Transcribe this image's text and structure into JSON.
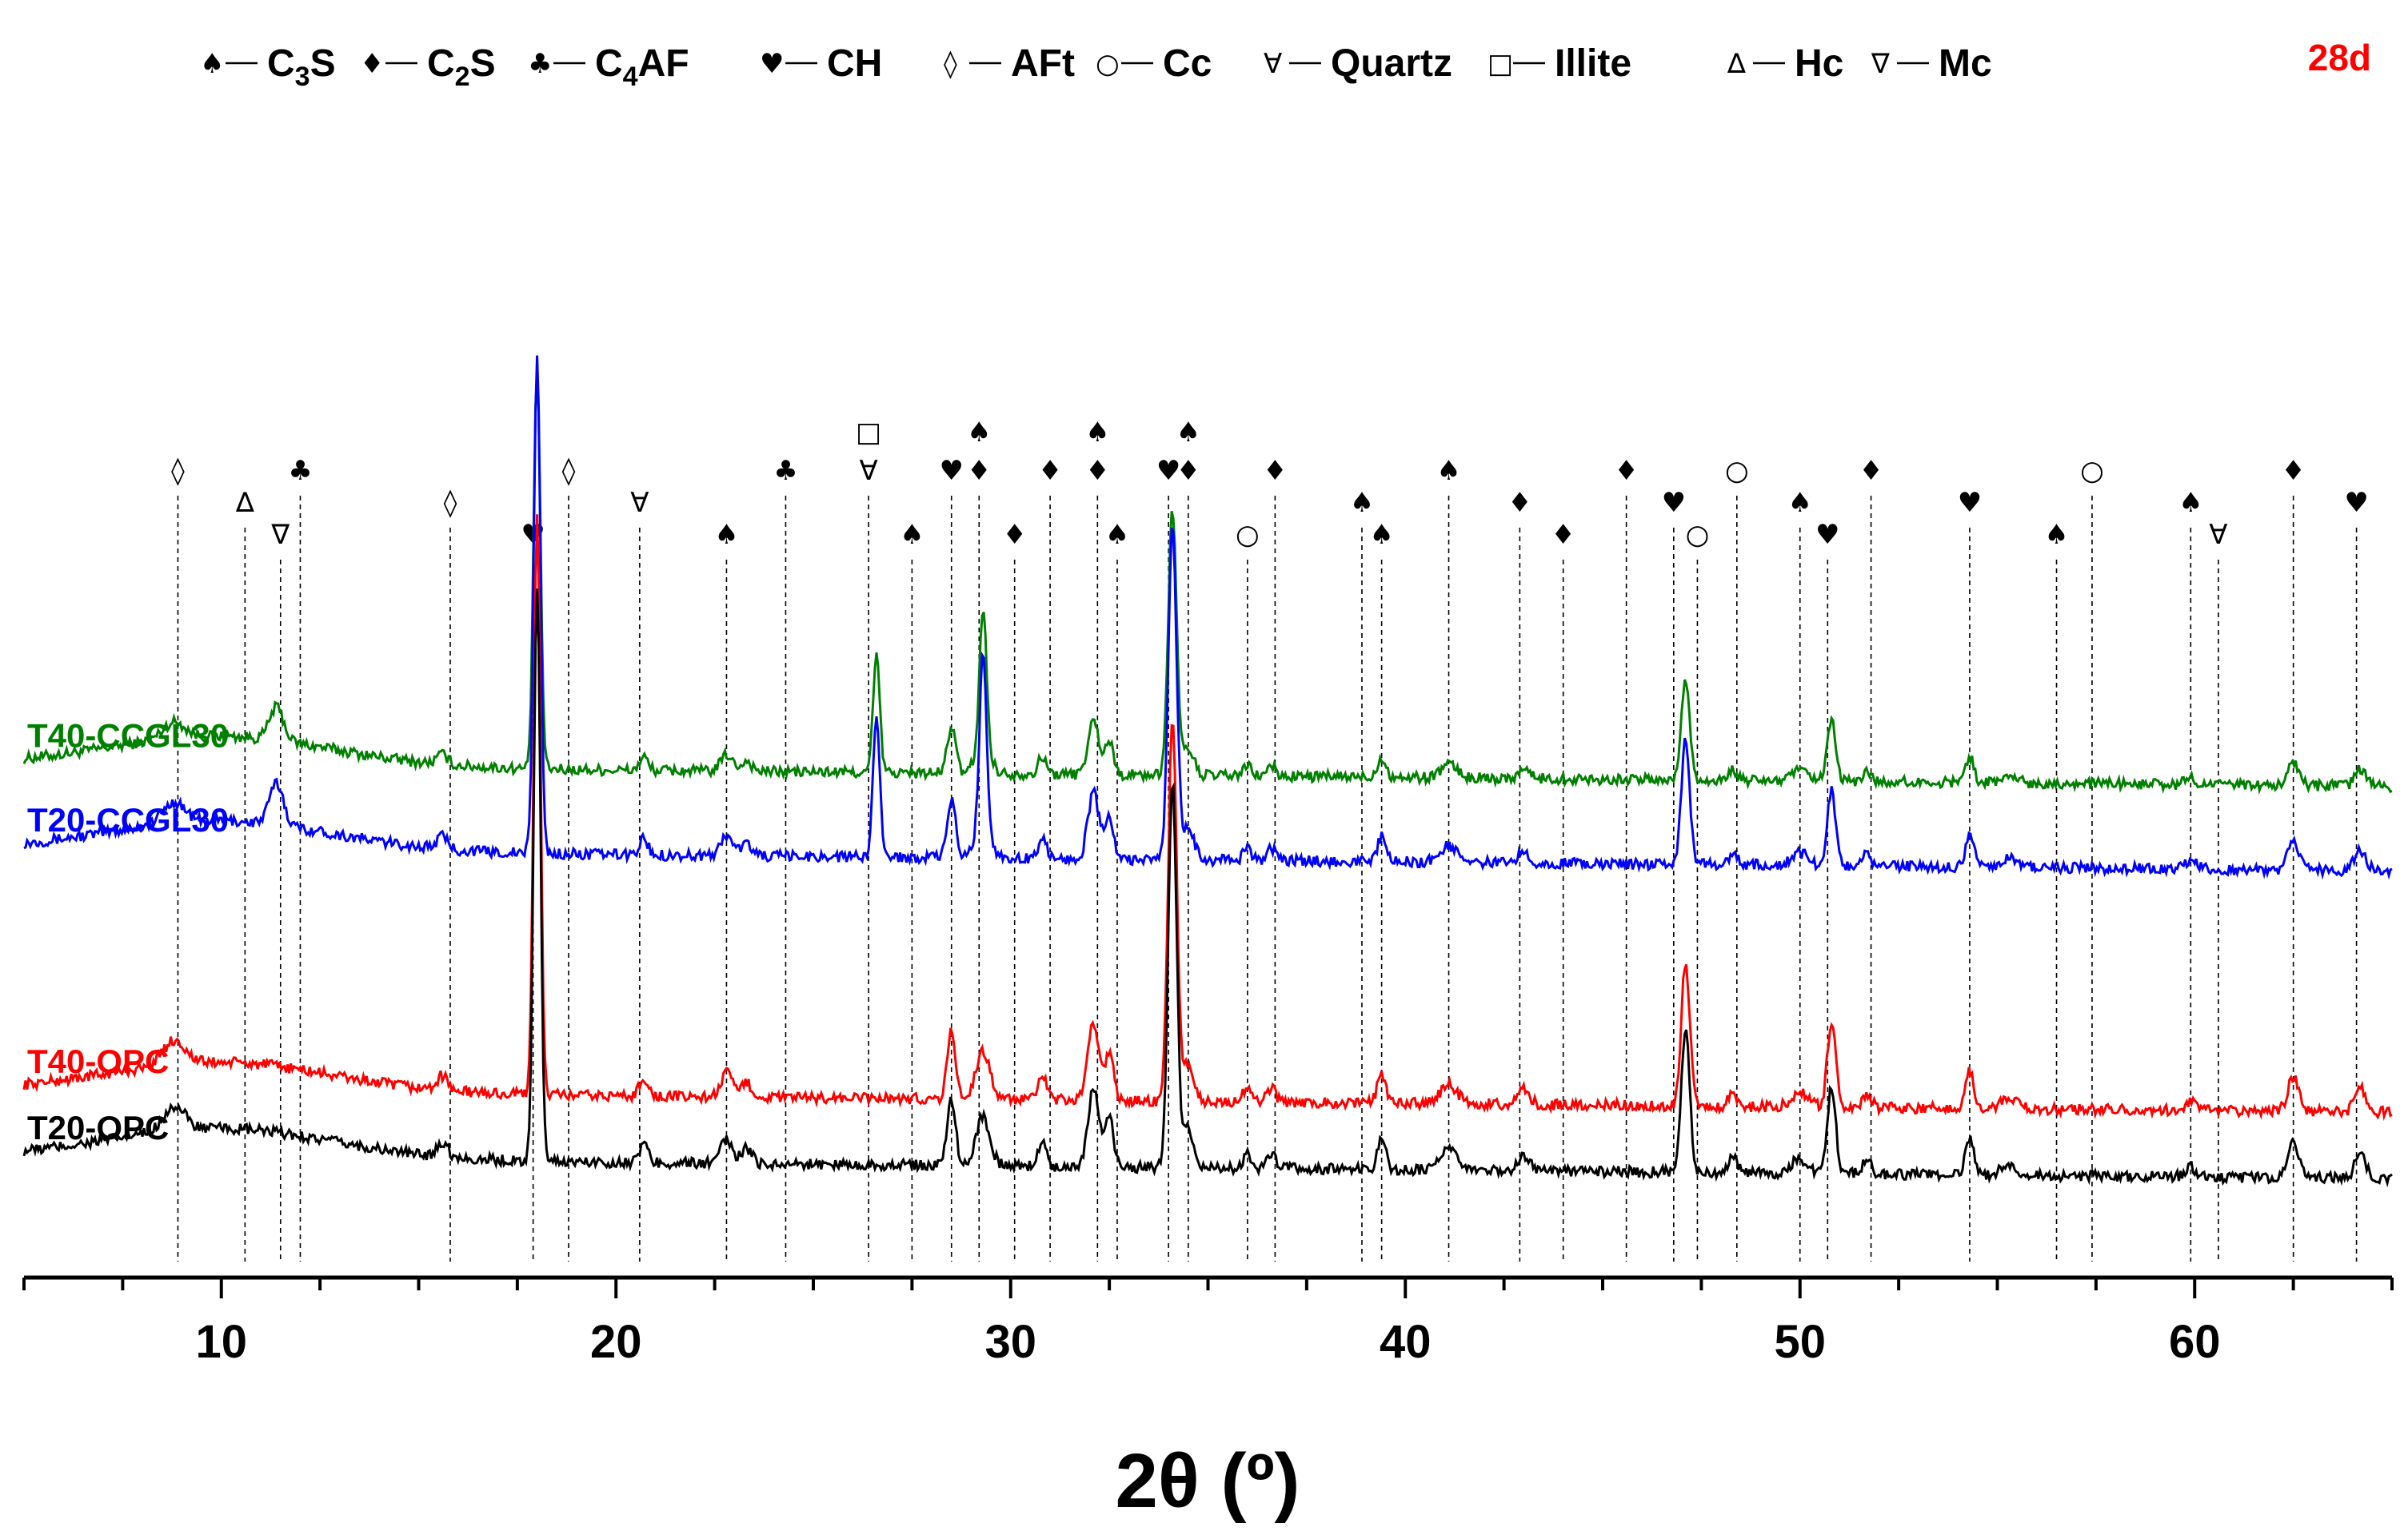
{
  "chart_data": {
    "type": "line",
    "title": "",
    "panel_label": "28d",
    "xlabel": "2θ (º)",
    "ylabel": "",
    "xlim": [
      5,
      65
    ],
    "xticks": [
      10,
      20,
      30,
      40,
      50,
      60
    ],
    "xtick_labels": [
      "10",
      "20",
      "30",
      "40",
      "50",
      "60"
    ],
    "grid": false,
    "legend": [
      {
        "symbol": "♠",
        "label": "C3S",
        "sub": "3",
        "parts": [
          "C",
          "3",
          "S"
        ]
      },
      {
        "symbol": "♦",
        "label": "C2S",
        "parts": [
          "C",
          "2",
          "S"
        ]
      },
      {
        "symbol": "♣",
        "label": "C4AF",
        "parts": [
          "C",
          "4",
          "AF"
        ]
      },
      {
        "symbol": "♥",
        "label": "CH",
        "parts": [
          "CH"
        ]
      },
      {
        "symbol": "◊",
        "label": "AFt",
        "parts": [
          "AFt"
        ]
      },
      {
        "symbol": "○",
        "label": "Cc",
        "parts": [
          "Cc"
        ]
      },
      {
        "symbol": "∀",
        "label": "Quartz",
        "parts": [
          "Quartz"
        ]
      },
      {
        "symbol": "□",
        "label": "Illite",
        "parts": [
          "Illite"
        ]
      },
      {
        "symbol": "∆",
        "label": "Hc",
        "parts": [
          "Hc"
        ]
      },
      {
        "symbol": "∇",
        "label": "Mc",
        "parts": [
          "Mc"
        ]
      }
    ],
    "series": [
      {
        "name": "T40-CCGL30",
        "color": "#008000",
        "baseline": 0.72,
        "offset": 0.72,
        "amp": 1.0
      },
      {
        "name": "T20-CCGL30",
        "color": "#0000ff",
        "baseline": 0.58,
        "offset": 0.58,
        "amp": 1.25
      },
      {
        "name": "T40-OPC",
        "color": "#ff0000",
        "baseline": 0.18,
        "offset": 0.18,
        "amp": 1.45
      },
      {
        "name": "T20-OPC",
        "color": "#000000",
        "baseline": 0.07,
        "offset": 0.07,
        "amp": 1.45
      }
    ],
    "peaks": [
      {
        "x": 8.8,
        "h": 0.05,
        "w": 0.4
      },
      {
        "x": 11.4,
        "h": 0.1,
        "w": 0.25,
        "only": [
          "T40-CCGL30",
          "T20-CCGL30"
        ]
      },
      {
        "x": 15.6,
        "h": 0.03,
        "w": 0.2
      },
      {
        "x": 18.0,
        "h": 1.2,
        "w": 0.12
      },
      {
        "x": 20.7,
        "h": 0.04,
        "w": 0.15
      },
      {
        "x": 22.8,
        "h": 0.05,
        "w": 0.2
      },
      {
        "x": 23.3,
        "h": 0.03,
        "w": 0.2
      },
      {
        "x": 26.6,
        "h": 0.35,
        "w": 0.12,
        "only": [
          "T40-CCGL30",
          "T20-CCGL30"
        ]
      },
      {
        "x": 28.5,
        "h": 0.14,
        "w": 0.15
      },
      {
        "x": 29.3,
        "h": 0.1,
        "w": 0.25
      },
      {
        "x": 29.3,
        "h": 0.4,
        "w": 0.12,
        "only": [
          "T40-CCGL30",
          "T20-CCGL30"
        ]
      },
      {
        "x": 30.8,
        "h": 0.05,
        "w": 0.15
      },
      {
        "x": 32.1,
        "h": 0.16,
        "w": 0.2
      },
      {
        "x": 32.5,
        "h": 0.1,
        "w": 0.15
      },
      {
        "x": 34.1,
        "h": 0.8,
        "w": 0.15
      },
      {
        "x": 34.5,
        "h": 0.08,
        "w": 0.2
      },
      {
        "x": 36.0,
        "h": 0.03,
        "w": 0.15
      },
      {
        "x": 36.6,
        "h": 0.03,
        "w": 0.15
      },
      {
        "x": 39.4,
        "h": 0.06,
        "w": 0.15
      },
      {
        "x": 41.1,
        "h": 0.04,
        "w": 0.3
      },
      {
        "x": 43.0,
        "h": 0.03,
        "w": 0.2
      },
      {
        "x": 47.1,
        "h": 0.3,
        "w": 0.15
      },
      {
        "x": 48.3,
        "h": 0.03,
        "w": 0.15
      },
      {
        "x": 50.0,
        "h": 0.03,
        "w": 0.3
      },
      {
        "x": 50.8,
        "h": 0.18,
        "w": 0.15
      },
      {
        "x": 51.7,
        "h": 0.03,
        "w": 0.15
      },
      {
        "x": 54.3,
        "h": 0.08,
        "w": 0.15
      },
      {
        "x": 55.3,
        "h": 0.02,
        "w": 0.3
      },
      {
        "x": 59.9,
        "h": 0.02,
        "w": 0.2
      },
      {
        "x": 62.5,
        "h": 0.07,
        "w": 0.2
      },
      {
        "x": 64.2,
        "h": 0.05,
        "w": 0.2
      }
    ],
    "phase_markers": [
      {
        "x": 8.9,
        "symbols": [
          "◊"
        ]
      },
      {
        "x": 10.6,
        "symbols": [
          "∆"
        ]
      },
      {
        "x": 11.5,
        "symbols": [
          "∇"
        ]
      },
      {
        "x": 12.0,
        "symbols": [
          "♣"
        ]
      },
      {
        "x": 15.8,
        "symbols": [
          "◊"
        ]
      },
      {
        "x": 17.9,
        "symbols": [
          "♥"
        ]
      },
      {
        "x": 18.8,
        "symbols": [
          "◊"
        ]
      },
      {
        "x": 20.6,
        "symbols": [
          "∀"
        ]
      },
      {
        "x": 22.8,
        "symbols": [
          "♠"
        ]
      },
      {
        "x": 24.3,
        "symbols": [
          "♣"
        ]
      },
      {
        "x": 26.4,
        "symbols": [
          "□",
          "∀"
        ]
      },
      {
        "x": 27.5,
        "symbols": [
          "♠"
        ]
      },
      {
        "x": 28.5,
        "symbols": [
          "♥"
        ]
      },
      {
        "x": 29.2,
        "symbols": [
          "♠",
          "♦"
        ]
      },
      {
        "x": 30.1,
        "symbols": [
          "♦"
        ]
      },
      {
        "x": 31.0,
        "symbols": [
          "♦"
        ]
      },
      {
        "x": 32.2,
        "symbols": [
          "♠",
          "♦"
        ]
      },
      {
        "x": 32.7,
        "symbols": [
          "♠"
        ]
      },
      {
        "x": 34.0,
        "symbols": [
          "♥"
        ]
      },
      {
        "x": 34.5,
        "symbols": [
          "♠",
          "♦"
        ]
      },
      {
        "x": 36.0,
        "symbols": [
          "○"
        ]
      },
      {
        "x": 36.7,
        "symbols": [
          "♦"
        ]
      },
      {
        "x": 38.9,
        "symbols": [
          "♠"
        ]
      },
      {
        "x": 39.4,
        "symbols": [
          "♠"
        ]
      },
      {
        "x": 41.1,
        "symbols": [
          "♠"
        ]
      },
      {
        "x": 42.9,
        "symbols": [
          "♦"
        ]
      },
      {
        "x": 44.0,
        "symbols": [
          "♦"
        ]
      },
      {
        "x": 45.6,
        "symbols": [
          "♦"
        ]
      },
      {
        "x": 46.8,
        "symbols": [
          "♥"
        ]
      },
      {
        "x": 47.4,
        "symbols": [
          "○"
        ]
      },
      {
        "x": 48.4,
        "symbols": [
          "○"
        ]
      },
      {
        "x": 50.0,
        "symbols": [
          "♠"
        ]
      },
      {
        "x": 50.7,
        "symbols": [
          "♥"
        ]
      },
      {
        "x": 51.8,
        "symbols": [
          "♦"
        ]
      },
      {
        "x": 54.3,
        "symbols": [
          "♥"
        ]
      },
      {
        "x": 56.5,
        "symbols": [
          "♠"
        ]
      },
      {
        "x": 57.4,
        "symbols": [
          "○"
        ]
      },
      {
        "x": 59.9,
        "symbols": [
          "♠"
        ]
      },
      {
        "x": 60.6,
        "symbols": [
          "∀"
        ]
      },
      {
        "x": 62.5,
        "symbols": [
          "♦"
        ]
      },
      {
        "x": 64.1,
        "symbols": [
          "♥"
        ]
      }
    ]
  }
}
